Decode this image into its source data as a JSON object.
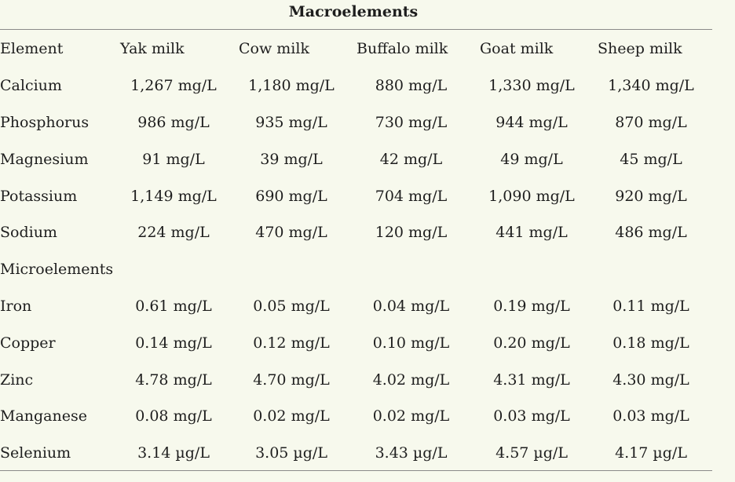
{
  "section_title": "Macroelements",
  "headers": [
    "Element",
    "Yak milk",
    "Cow milk",
    "Buffalo milk",
    "Goat milk",
    "Sheep milk"
  ],
  "macro_rows": [
    {
      "element": "Calcium",
      "values": [
        "1,267 mg/L",
        "1,180 mg/L",
        "880 mg/L",
        "1,330 mg/L",
        "1,340 mg/L"
      ]
    },
    {
      "element": "Phosphorus",
      "values": [
        "986 mg/L",
        "935 mg/L",
        "730 mg/L",
        "944 mg/L",
        "870 mg/L"
      ]
    },
    {
      "element": "Magnesium",
      "values": [
        "91 mg/L",
        "39 mg/L",
        "42 mg/L",
        "49 mg/L",
        "45 mg/L"
      ]
    },
    {
      "element": "Potassium",
      "values": [
        "1,149 mg/L",
        "690 mg/L",
        "704 mg/L",
        "1,090 mg/L",
        "920 mg/L"
      ]
    },
    {
      "element": "Sodium",
      "values": [
        "224 mg/L",
        "470 mg/L",
        "120 mg/L",
        "441 mg/L",
        "486 mg/L"
      ]
    }
  ],
  "micro_title": "Microelements",
  "micro_rows": [
    {
      "element": "Iron",
      "values": [
        "0.61 mg/L",
        "0.05 mg/L",
        "0.04 mg/L",
        "0.19 mg/L",
        "0.11 mg/L"
      ]
    },
    {
      "element": "Copper",
      "values": [
        "0.14 mg/L",
        "0.12 mg/L",
        "0.10 mg/L",
        "0.20 mg/L",
        "0.18 mg/L"
      ]
    },
    {
      "element": "Zinc",
      "values": [
        "4.78 mg/L",
        "4.70 mg/L",
        "4.02 mg/L",
        "4.31 mg/L",
        "4.30 mg/L"
      ]
    },
    {
      "element": "Manganese",
      "values": [
        "0.08 mg/L",
        "0.02 mg/L",
        "0.02 mg/L",
        "0.03 mg/L",
        "0.03 mg/L"
      ]
    },
    {
      "element": "Selenium",
      "values": [
        "3.14 µg/L",
        "3.05 µg/L",
        "3.43 µg/L",
        "4.57 µg/L",
        "4.17 µg/L"
      ]
    }
  ]
}
